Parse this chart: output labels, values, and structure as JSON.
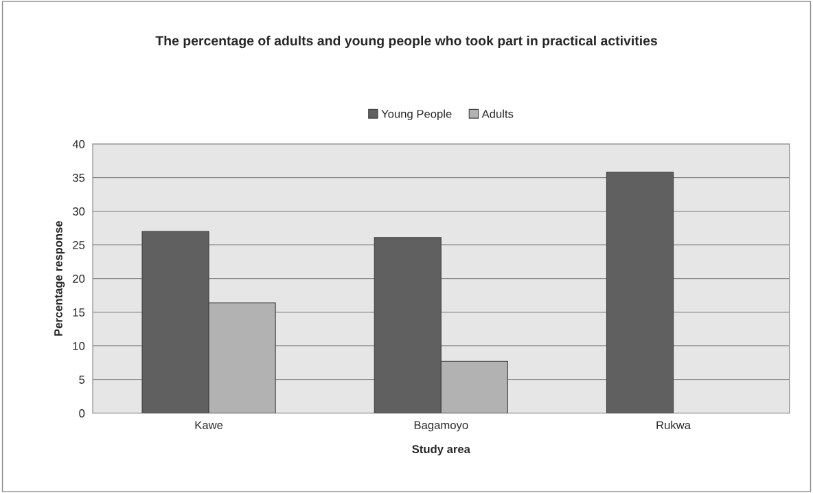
{
  "chart_data": {
    "type": "bar",
    "title": "The percentage of adults and young people who took part in practical activities",
    "xlabel": "Study area",
    "ylabel": "Percentage response",
    "categories": [
      "Kawe",
      "Bagamoyo",
      "Rukwa"
    ],
    "series": [
      {
        "name": "Young People",
        "color": "#606060",
        "values": [
          27.0,
          26.1,
          35.8
        ]
      },
      {
        "name": "Adults",
        "color": "#b2b2b2",
        "values": [
          16.4,
          7.7,
          null
        ]
      }
    ],
    "ylim": [
      0,
      40
    ],
    "yticks": [
      0,
      5,
      10,
      15,
      20,
      25,
      30,
      35,
      40
    ],
    "grid": "y",
    "legend": "top"
  }
}
